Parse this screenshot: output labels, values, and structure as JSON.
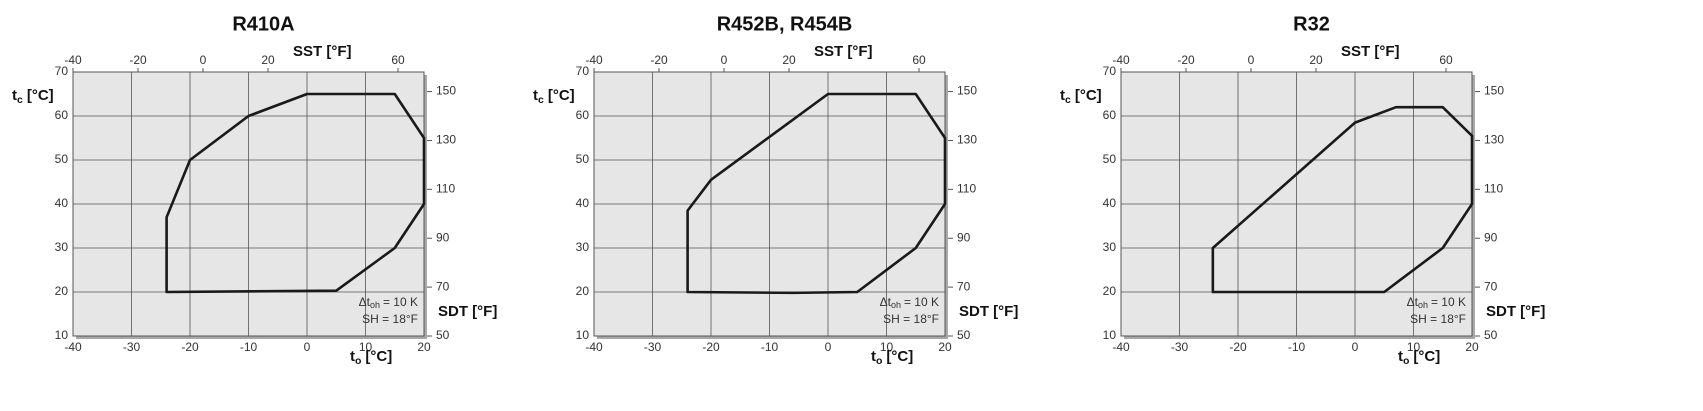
{
  "chart_data": [
    {
      "type": "line",
      "title": "R410A",
      "x_label": {
        "symbol": "t",
        "subscript": "o",
        "unit": "[°C]"
      },
      "y_label": {
        "symbol": "t",
        "subscript": "c",
        "unit": "[°C]"
      },
      "x2_label": "SST [°F]",
      "y2_label": "SDT [°F]",
      "annotation": [
        {
          "symbol": "Δt",
          "subscript": "oh",
          "rest": "= 10 K"
        },
        "SH = 18°F"
      ],
      "xlim": [
        -40,
        20
      ],
      "xticks": [
        -40,
        -30,
        -20,
        -10,
        0,
        10,
        20
      ],
      "ylim": [
        10,
        70
      ],
      "yticks": [
        10,
        20,
        30,
        40,
        50,
        60,
        70
      ],
      "x2lim": [
        -40,
        68
      ],
      "x2ticks": [
        -40,
        -20,
        0,
        20,
        60
      ],
      "y2lim": [
        50,
        158
      ],
      "y2ticks": [
        50,
        70,
        90,
        110,
        130,
        150
      ],
      "grid": true,
      "series": [
        {
          "color": "#1a1a1a",
          "x": [
            -24,
            -24,
            -20,
            -10,
            0,
            15,
            20,
            20,
            15,
            5
          ],
          "values": [
            20,
            37,
            50,
            60,
            65,
            65,
            55,
            40,
            30,
            20.3
          ]
        }
      ]
    },
    {
      "type": "line",
      "title": "R452B, R454B",
      "x_label": {
        "symbol": "t",
        "subscript": "o",
        "unit": "[°C]"
      },
      "y_label": {
        "symbol": "t",
        "subscript": "c",
        "unit": "[°C]"
      },
      "x2_label": "SST [°F]",
      "y2_label": "SDT [°F]",
      "annotation": [
        {
          "symbol": "Δt",
          "subscript": "oh",
          "rest": "= 10 K"
        },
        "SH = 18°F"
      ],
      "xlim": [
        -40,
        20
      ],
      "xticks": [
        -40,
        -30,
        -20,
        -10,
        0,
        10,
        20
      ],
      "ylim": [
        10,
        70
      ],
      "yticks": [
        10,
        20,
        30,
        40,
        50,
        60,
        70
      ],
      "x2lim": [
        -40,
        68
      ],
      "x2ticks": [
        -40,
        -20,
        0,
        20,
        60
      ],
      "y2lim": [
        50,
        158
      ],
      "y2ticks": [
        50,
        70,
        90,
        110,
        130,
        150
      ],
      "grid": true,
      "series": [
        {
          "color": "#1a1a1a",
          "x": [
            -24,
            -24,
            -20,
            0,
            15,
            20,
            20,
            15,
            5,
            -6
          ],
          "values": [
            20,
            38.5,
            45.5,
            65,
            65,
            55,
            40,
            30,
            20,
            19.8
          ]
        }
      ]
    },
    {
      "type": "line",
      "title": "R32",
      "x_label": {
        "symbol": "t",
        "subscript": "o",
        "unit": "[°C]"
      },
      "y_label": {
        "symbol": "t",
        "subscript": "c",
        "unit": "[°C]"
      },
      "x2_label": "SST [°F]",
      "y2_label": "SDT [°F]",
      "annotation": [
        {
          "symbol": "Δt",
          "subscript": "oh",
          "rest": "= 10 K"
        },
        "SH = 18°F"
      ],
      "xlim": [
        -40,
        20
      ],
      "xticks": [
        -40,
        -30,
        -20,
        -10,
        0,
        10,
        20
      ],
      "ylim": [
        10,
        70
      ],
      "yticks": [
        10,
        20,
        30,
        40,
        50,
        60,
        70
      ],
      "x2lim": [
        -40,
        68
      ],
      "x2ticks": [
        -40,
        -20,
        0,
        20,
        60
      ],
      "y2lim": [
        50,
        158
      ],
      "y2ticks": [
        50,
        70,
        90,
        110,
        130,
        150
      ],
      "grid": true,
      "series": [
        {
          "color": "#1a1a1a",
          "x": [
            -24.3,
            -24.3,
            0,
            7,
            15,
            20,
            20,
            15,
            5
          ],
          "values": [
            20,
            30,
            58.5,
            62,
            62,
            55.5,
            40,
            30,
            20
          ]
        }
      ]
    }
  ]
}
